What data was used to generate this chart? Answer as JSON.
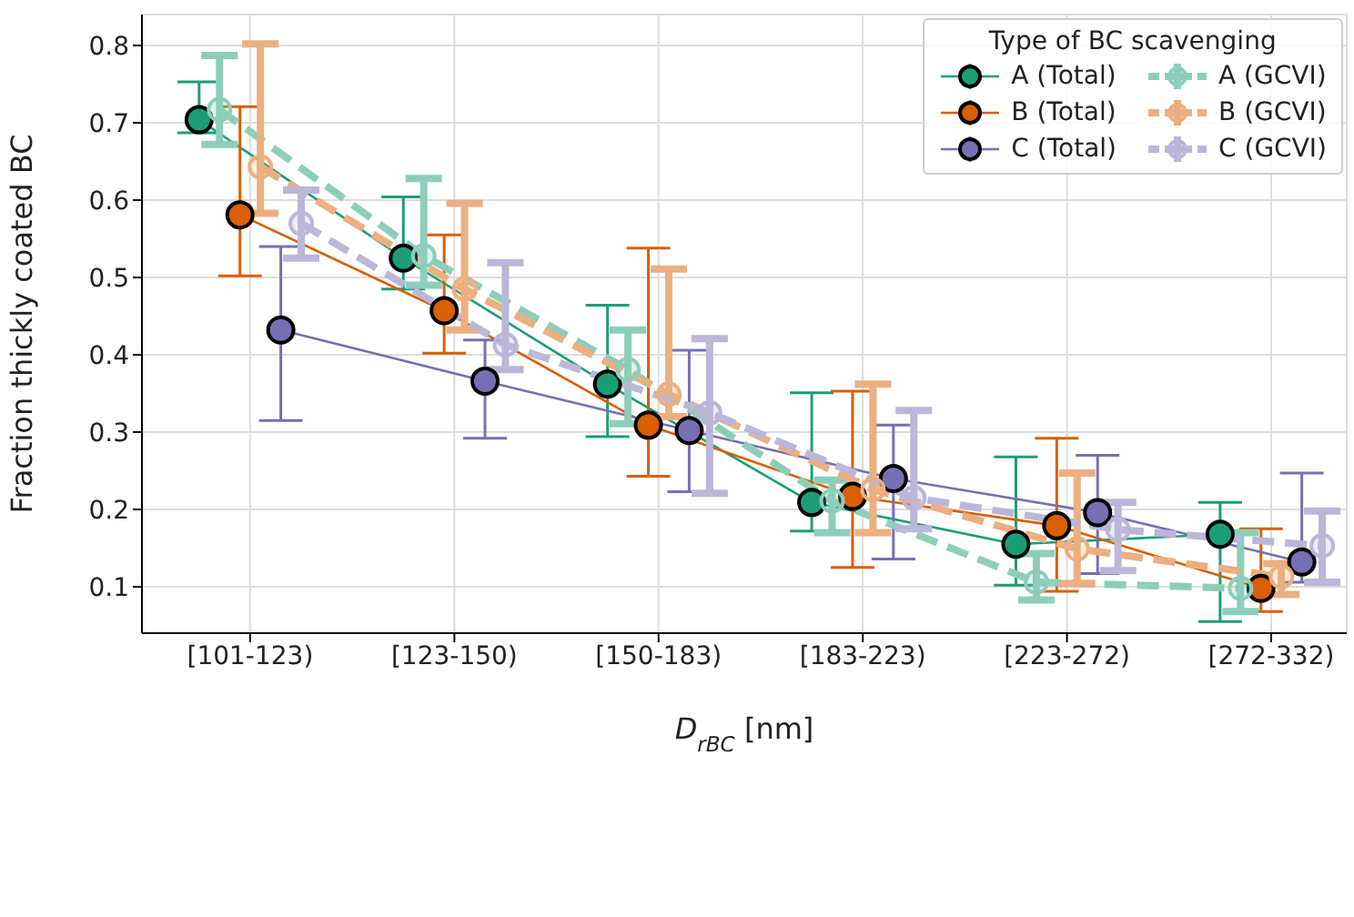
{
  "chart_data": {
    "type": "line",
    "xlabel": "D$_{rBC}$ [nm]",
    "ylabel": "Fraction thickly coated BC",
    "legend_title": "Type of BC scavenging",
    "categories": [
      "[101-123)",
      "[123-150)",
      "[150-183)",
      "[183-223)",
      "[223-272)",
      "[272-332)"
    ],
    "ylim": [
      0.04,
      0.84
    ],
    "yticks": [
      0.1,
      0.2,
      0.3,
      0.4,
      0.5,
      0.6,
      0.7,
      0.8
    ],
    "grid": true,
    "legend": "top right",
    "marker": "circle",
    "series": [
      {
        "name": "A (Total)",
        "color": "#1b9e77",
        "line_style": "solid",
        "values": [
          0.704,
          0.525,
          0.362,
          0.209,
          0.155,
          0.168
        ],
        "errors": [
          [
            0.687,
            0.753
          ],
          [
            0.485,
            0.604
          ],
          [
            0.294,
            0.464
          ],
          [
            0.172,
            0.351
          ],
          [
            0.102,
            0.268
          ],
          [
            0.055,
            0.209
          ]
        ]
      },
      {
        "name": "B (Total)",
        "color": "#d95f02",
        "line_style": "solid",
        "values": [
          0.581,
          0.457,
          0.309,
          0.217,
          0.179,
          0.098
        ],
        "errors": [
          [
            0.502,
            0.721
          ],
          [
            0.402,
            0.555
          ],
          [
            0.243,
            0.538
          ],
          [
            0.125,
            0.353
          ],
          [
            0.094,
            0.292
          ],
          [
            0.068,
            0.175
          ]
        ]
      },
      {
        "name": "C (Total)",
        "color": "#7570b3",
        "line_style": "solid",
        "values": [
          0.432,
          0.366,
          0.302,
          0.24,
          0.196,
          0.132
        ],
        "errors": [
          [
            0.315,
            0.54
          ],
          [
            0.292,
            0.419
          ],
          [
            0.223,
            0.406
          ],
          [
            0.136,
            0.309
          ],
          [
            0.117,
            0.27
          ],
          [
            0.106,
            0.247
          ]
        ]
      },
      {
        "name": "A (GCVI)",
        "color": "#8dcebb",
        "line_style": "dashed",
        "values": [
          0.717,
          0.528,
          0.381,
          0.211,
          0.106,
          0.098
        ],
        "errors": [
          [
            0.672,
            0.787
          ],
          [
            0.49,
            0.628
          ],
          [
            0.311,
            0.432
          ],
          [
            0.17,
            0.238
          ],
          [
            0.083,
            0.143
          ],
          [
            0.068,
            0.17
          ]
        ]
      },
      {
        "name": "B (GCVI)",
        "color": "#ecaf80",
        "line_style": "dashed",
        "values": [
          0.643,
          0.485,
          0.349,
          0.226,
          0.149,
          0.113
        ],
        "errors": [
          [
            0.583,
            0.802
          ],
          [
            0.432,
            0.596
          ],
          [
            0.32,
            0.511
          ],
          [
            0.17,
            0.362
          ],
          [
            0.104,
            0.247
          ],
          [
            0.09,
            0.13
          ]
        ]
      },
      {
        "name": "C (GCVI)",
        "color": "#bab7d9",
        "line_style": "dashed",
        "values": [
          0.57,
          0.413,
          0.325,
          0.215,
          0.174,
          0.153
        ],
        "errors": [
          [
            0.525,
            0.613
          ],
          [
            0.381,
            0.519
          ],
          [
            0.221,
            0.421
          ],
          [
            0.175,
            0.328
          ],
          [
            0.121,
            0.209
          ],
          [
            0.106,
            0.198
          ]
        ]
      }
    ]
  }
}
